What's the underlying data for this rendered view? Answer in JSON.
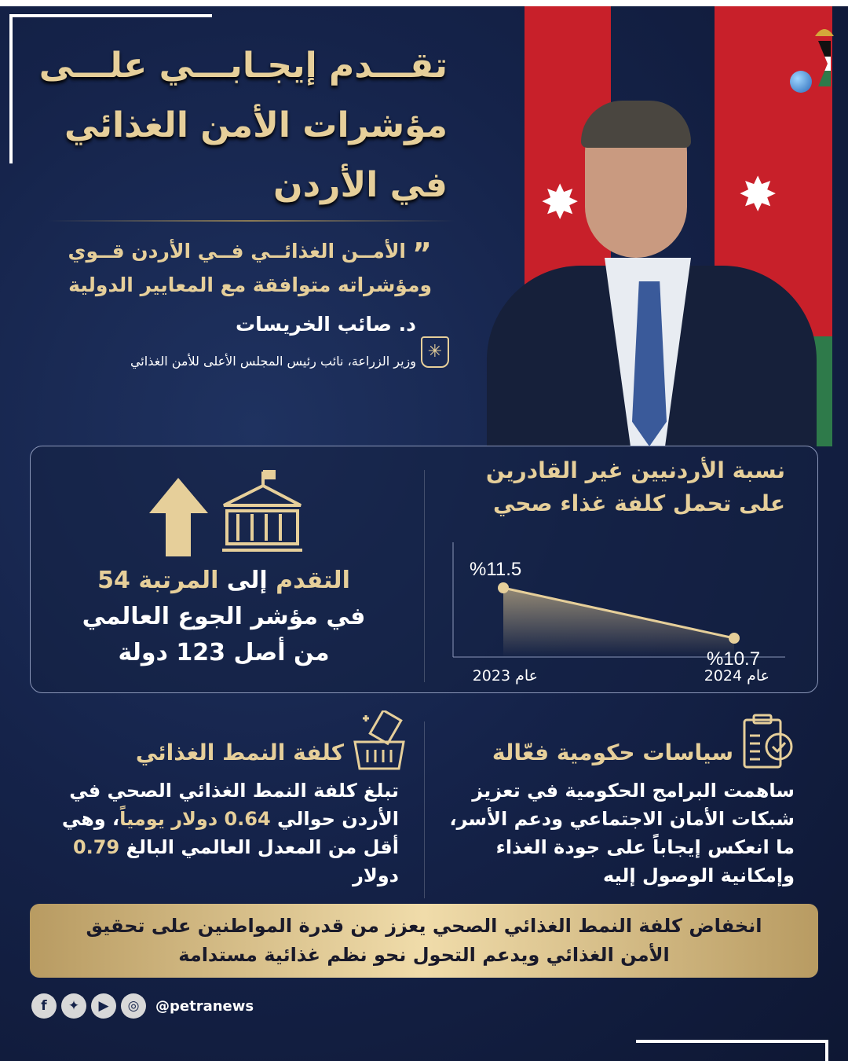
{
  "title": {
    "lines": [
      "تقـــدم إيجـابـــي علـــى",
      "مؤشرات الأمن الغذائي",
      "في الأردن"
    ]
  },
  "quote": {
    "lines": [
      "الأمــن الغذائــي فــي الأردن قــوي",
      "ومؤشراته متوافقة مع المعايير الدولية"
    ],
    "icon": "quote-mark-icon"
  },
  "speaker": {
    "name": "د. صائب الخريسات",
    "role": "وزير الزراعة، نائب رئيس المجلس الأعلى للأمن الغذائي"
  },
  "rank": {
    "part1": "التقدم ",
    "part2": "إلى ",
    "part3": "المرتبة 54",
    "line2": "في مؤشر الجوع العالمي",
    "line3": "من أصل 123 دولة",
    "icons": [
      "arrow-up-icon",
      "institution-icon"
    ]
  },
  "chart_data": {
    "type": "area",
    "title": "نسبة الأردنيين غير القادرين على تحمل كلفة غذاء صحي",
    "categories": [
      "عام 2023",
      "عام 2024"
    ],
    "values": [
      11.5,
      10.7
    ],
    "data_labels": [
      "%11.5",
      "%10.7"
    ],
    "unit": "%",
    "grid": false,
    "legend": "none"
  },
  "policies": {
    "title": "سياسات حكومية فعّالة",
    "body": [
      "ساهمت البرامج الحكومية في تعزيز",
      "شبكات الأمان الاجتماعي ودعم الأسر،",
      "ما انعكس إيجاباً على جودة الغذاء",
      "وإمكانية الوصول إليه"
    ],
    "icon": "clipboard-check-icon"
  },
  "cost": {
    "title": "كلفة النمط الغذائي",
    "body1": "تبلغ كلفة النمط الغذائي الصحي في الأردن حوالي ",
    "highlight1": "0.64 دولار يومياً",
    "body2": "، وهي أقل من المعدل العالمي البالغ ",
    "highlight2": "0.79",
    "body3": " دولار",
    "icon": "food-basket-icon"
  },
  "banner": {
    "lines": [
      "انخفاض كلفة النمط الغذائي الصحي يعزز من قدرة المواطنين على تحقيق",
      "الأمن الغذائي ويدعم التحول نحو نظم غذائية مستدامة"
    ]
  },
  "footer": {
    "handle": "@petranews",
    "icons": [
      "facebook-icon",
      "twitter-icon",
      "youtube-icon",
      "instagram-icon"
    ]
  },
  "colors": {
    "background": "#15234a",
    "gold": "#e6cf9a",
    "flag_red": "#c8202a",
    "flag_green": "#2e7a4a"
  }
}
